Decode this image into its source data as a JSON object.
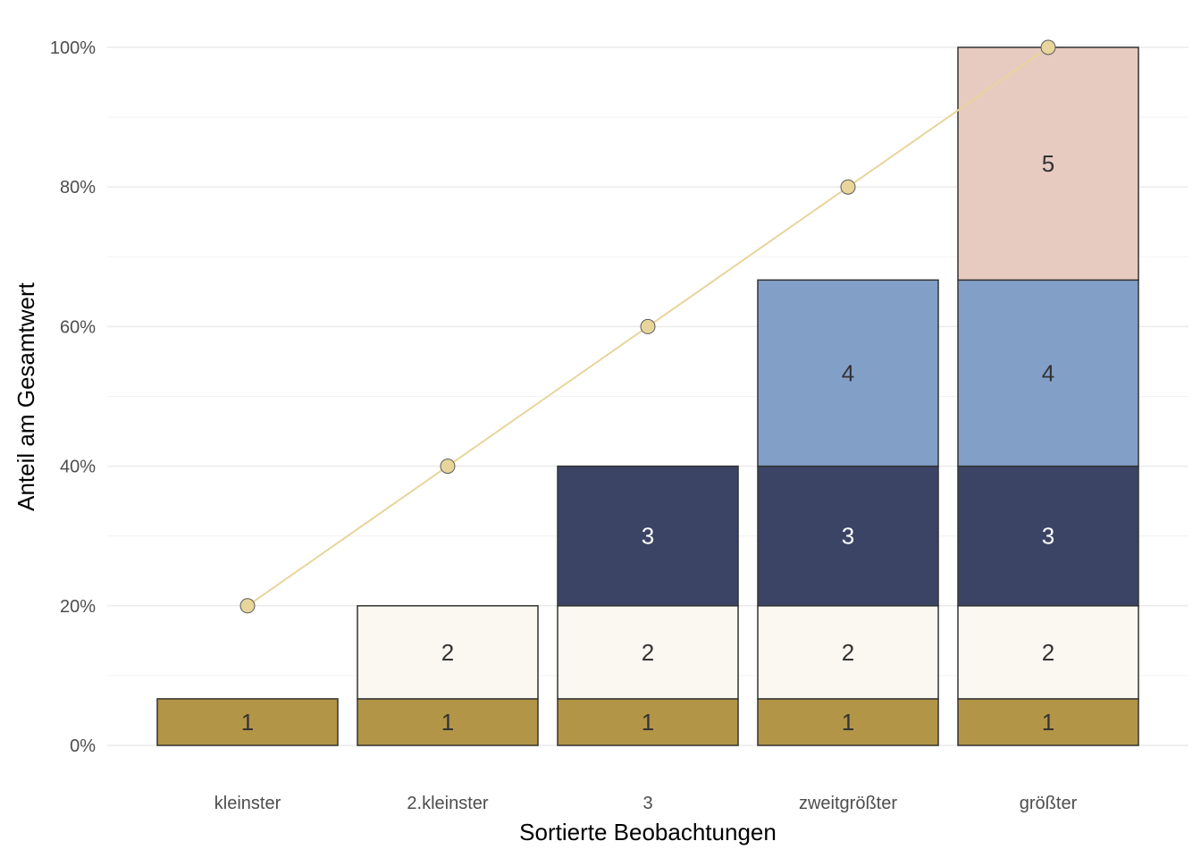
{
  "chart_data": {
    "type": "bar",
    "stacked": true,
    "xlabel": "Sortierte Beobachtungen",
    "ylabel": "Anteil am Gesamtwert",
    "ylim": [
      0,
      1
    ],
    "y_ticks": [
      {
        "value": 0,
        "label": "0%"
      },
      {
        "value": 0.2,
        "label": "20%"
      },
      {
        "value": 0.4,
        "label": "40%"
      },
      {
        "value": 0.6,
        "label": "60%"
      },
      {
        "value": 0.8,
        "label": "80%"
      },
      {
        "value": 1.0,
        "label": "100%"
      }
    ],
    "grid": true,
    "categories": [
      "kleinster",
      "2.kleinster",
      "3",
      "zweitgrößter",
      "größter"
    ],
    "series": [
      {
        "label": "1",
        "color": "#b39548",
        "text_color": "#333333",
        "values": [
          0.0667,
          0.0667,
          0.0667,
          0.0667,
          0.0667
        ]
      },
      {
        "label": "2",
        "color": "#faf8f1",
        "text_color": "#333333",
        "values": [
          0,
          0.1333,
          0.1333,
          0.1333,
          0.1333
        ]
      },
      {
        "label": "3",
        "color": "#3b4465",
        "text_color": "#ffffff",
        "values": [
          0,
          0,
          0.2,
          0.2,
          0.2
        ]
      },
      {
        "label": "4",
        "color": "#82a0c7",
        "text_color": "#333333",
        "values": [
          0,
          0,
          0,
          0.2667,
          0.2667
        ]
      },
      {
        "label": "5",
        "color": "#e7cbc0",
        "text_color": "#333333",
        "values": [
          0,
          0,
          0,
          0,
          0.3333
        ]
      }
    ],
    "line": {
      "color": "#e8d59c",
      "values": [
        0.2,
        0.4,
        0.6,
        0.8,
        1.0
      ]
    }
  }
}
